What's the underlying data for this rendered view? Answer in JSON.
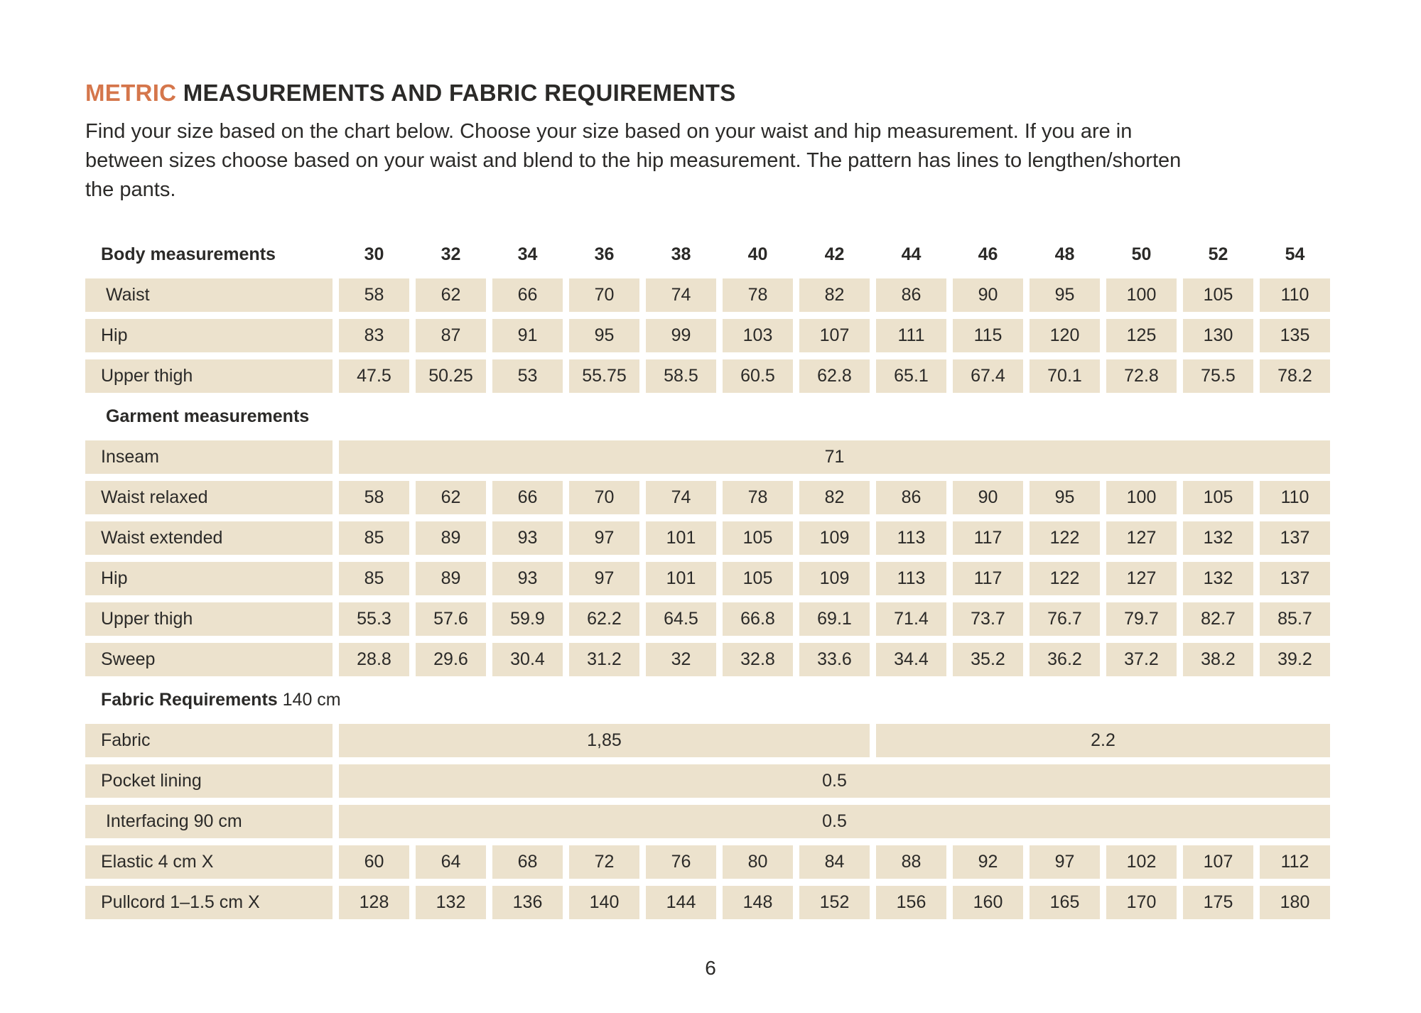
{
  "page": {
    "title": {
      "accent": "METRIC",
      "rest": "MEASUREMENTS AND FABRIC REQUIREMENTS"
    },
    "intro_lines": [
      "Find your size based on the chart below. Choose your size based on your waist and hip measurement. If you are in",
      "between sizes choose based on your waist and blend to the hip measurement. The pattern has lines to lengthen/shorten",
      "the pants."
    ],
    "page_number": "6"
  },
  "colors": {
    "accent_orange": "#d5764b",
    "cell_beige": "#ece2cd",
    "text_dark": "#2b2a28",
    "page_background": "#ffffff"
  },
  "table": {
    "header": {
      "label": "Body measurements",
      "sizes": [
        "30",
        "32",
        "34",
        "36",
        "38",
        "40",
        "42",
        "44",
        "46",
        "48",
        "50",
        "52",
        "54"
      ]
    },
    "sections": [
      {
        "name": "body-measurements",
        "rows": [
          {
            "label": " Waist",
            "values": [
              "58",
              "62",
              "66",
              "70",
              "74",
              "78",
              "82",
              "86",
              "90",
              "95",
              "100",
              "105",
              "110"
            ]
          },
          {
            "label": "Hip",
            "values": [
              "83",
              "87",
              "91",
              "95",
              "99",
              "103",
              "107",
              "111",
              "115",
              "120",
              "125",
              "130",
              "135"
            ]
          },
          {
            "label": "Upper thigh",
            "values": [
              "47.5",
              "50.25",
              "53",
              "55.75",
              "58.5",
              "60.5",
              "62.8",
              "65.1",
              "67.4",
              "70.1",
              "72.8",
              "75.5",
              "78.2"
            ]
          }
        ]
      },
      {
        "name": "garment-measurements",
        "header": {
          "bold": " Garment measurements",
          "normal": ""
        },
        "rows": [
          {
            "label": "Inseam",
            "spans": [
              {
                "cols": 13,
                "value": "71"
              }
            ]
          },
          {
            "label": "Waist relaxed",
            "values": [
              "58",
              "62",
              "66",
              "70",
              "74",
              "78",
              "82",
              "86",
              "90",
              "95",
              "100",
              "105",
              "110"
            ]
          },
          {
            "label": "Waist extended",
            "values": [
              "85",
              "89",
              "93",
              "97",
              "101",
              "105",
              "109",
              "113",
              "117",
              "122",
              "127",
              "132",
              "137"
            ]
          },
          {
            "label": "Hip",
            "values": [
              "85",
              "89",
              "93",
              "97",
              "101",
              "105",
              "109",
              "113",
              "117",
              "122",
              "127",
              "132",
              "137"
            ]
          },
          {
            "label": "Upper thigh",
            "values": [
              "55.3",
              "57.6",
              "59.9",
              "62.2",
              "64.5",
              "66.8",
              "69.1",
              "71.4",
              "73.7",
              "76.7",
              "79.7",
              "82.7",
              "85.7"
            ]
          },
          {
            "label": "Sweep",
            "values": [
              "28.8",
              "29.6",
              "30.4",
              "31.2",
              "32",
              "32.8",
              "33.6",
              "34.4",
              "35.2",
              "36.2",
              "37.2",
              "38.2",
              "39.2"
            ]
          }
        ]
      },
      {
        "name": "fabric-requirements",
        "header": {
          "bold": "Fabric Requirements",
          "normal": " 140 cm"
        },
        "rows": [
          {
            "label": "Fabric",
            "spans": [
              {
                "cols": 7,
                "value": "1,85"
              },
              {
                "cols": 6,
                "value": "2.2"
              }
            ]
          },
          {
            "label": "Pocket lining",
            "spans": [
              {
                "cols": 13,
                "value": "0.5"
              }
            ]
          },
          {
            "label": " Interfacing 90 cm",
            "spans": [
              {
                "cols": 13,
                "value": "0.5"
              }
            ]
          },
          {
            "label": "Elastic 4 cm X",
            "values": [
              "60",
              "64",
              "68",
              "72",
              "76",
              "80",
              "84",
              "88",
              "92",
              "97",
              "102",
              "107",
              "112"
            ]
          },
          {
            "label": "Pullcord 1–1.5 cm X",
            "values": [
              "128",
              "132",
              "136",
              "140",
              "144",
              "148",
              "152",
              "156",
              "160",
              "165",
              "170",
              "175",
              "180"
            ]
          }
        ]
      }
    ]
  }
}
